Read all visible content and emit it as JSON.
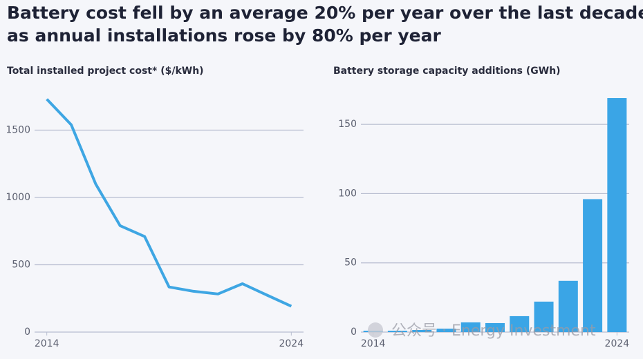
{
  "title": "Battery cost fell by an average 20% per year over the last decade as annual installations rose by 80% per year",
  "watermark": "公众号 · Energy Investment",
  "chart_data": [
    {
      "type": "line",
      "title": "Total installed project cost* ($/kWh)",
      "x": [
        2014,
        2015,
        2016,
        2017,
        2018,
        2019,
        2020,
        2021,
        2022,
        2023,
        2024
      ],
      "series": [
        {
          "name": "Total installed project cost",
          "color": "#3ea6e3",
          "values": [
            1730,
            1540,
            1100,
            790,
            710,
            335,
            303,
            283,
            359,
            275,
            192
          ]
        }
      ],
      "xlim": [
        2013.5,
        2024.5
      ],
      "xticks": [
        2014,
        2024
      ],
      "ylim": [
        0,
        1800
      ],
      "yticks": [
        0,
        500,
        1000,
        1500
      ],
      "grid": true
    },
    {
      "type": "bar",
      "title": "Battery storage capacity additions (GWh)",
      "x": [
        2014,
        2015,
        2016,
        2017,
        2018,
        2019,
        2020,
        2021,
        2022,
        2023,
        2024
      ],
      "series": [
        {
          "name": "Battery storage capacity additions",
          "color": "#3aa5e6",
          "values": [
            1,
            1,
            1.5,
            2.5,
            7,
            6.5,
            11.5,
            22,
            37,
            96,
            169
          ]
        }
      ],
      "xlim": [
        2013.5,
        2024.5
      ],
      "xticks": [
        2014,
        2024
      ],
      "ylim": [
        0,
        175
      ],
      "yticks": [
        0,
        50,
        100,
        150
      ],
      "grid": true
    }
  ]
}
